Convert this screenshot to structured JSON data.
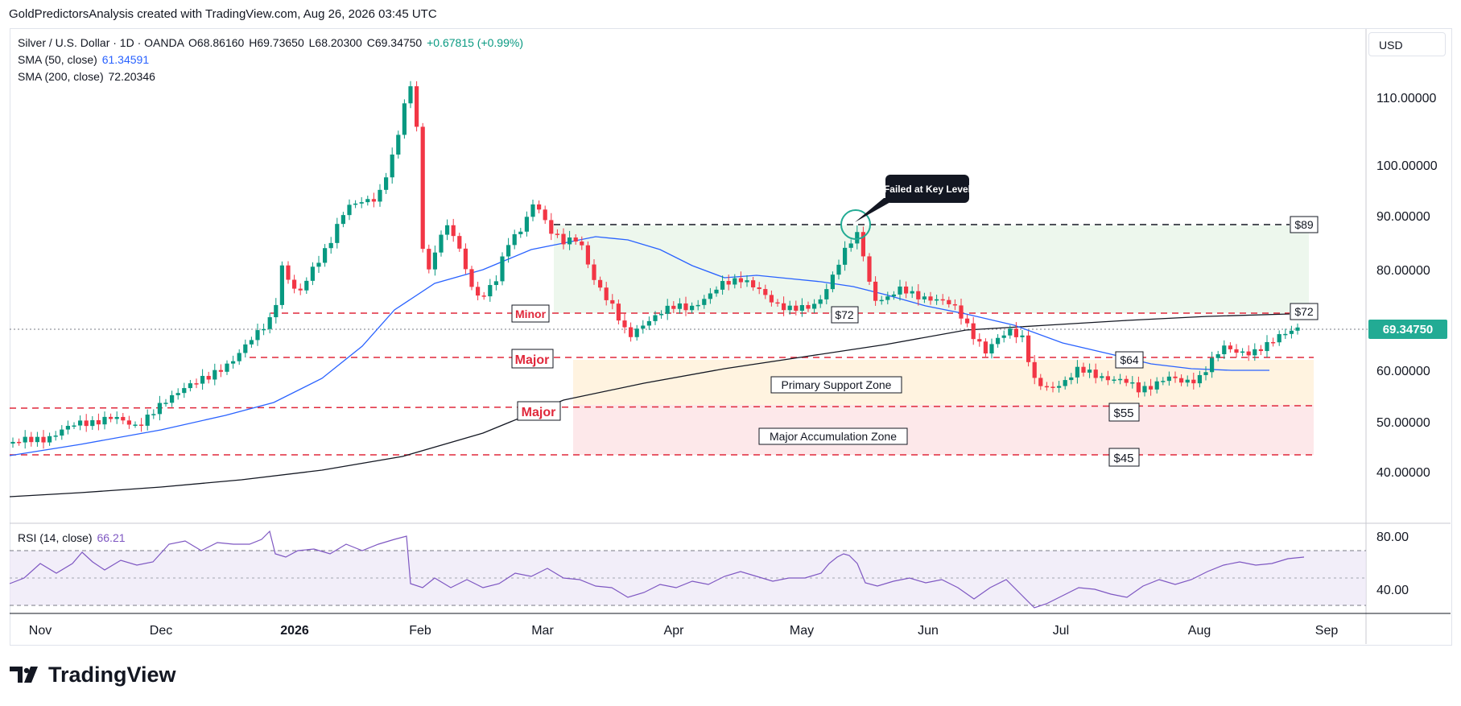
{
  "header": {
    "attribution": "GoldPredictorsAnalysis created with TradingView.com, Aug 26, 2026 03:45 UTC"
  },
  "legend": {
    "symbol": "Silver / U.S. Dollar · 1D · OANDA",
    "open": "O68.86160",
    "high": "H69.73650",
    "low": "L68.20300",
    "close": "C69.34750",
    "change": "+0.67815 (+0.99%)",
    "sma50_label": "SMA (50, close)",
    "sma50_value": "61.34591",
    "sma200_label": "SMA (200, close)",
    "sma200_value": "72.20346",
    "rsi_label": "RSI (14, close)",
    "rsi_value": "66.21"
  },
  "currency": "USD",
  "logo_text": "TradingView",
  "colors": {
    "up": "#089981",
    "down": "#f23645",
    "sma50": "#2962ff",
    "sma200": "#131722",
    "rsi": "#7e57c2",
    "price_label": "#22ab94",
    "annot_red": "#e0283b"
  },
  "chart_data": {
    "type": "candlestick",
    "price_axis": {
      "ticks": [
        "110.00000",
        "100.00000",
        "90.00000",
        "80.00000",
        "60.00000",
        "50.00000",
        "40.00000"
      ],
      "last_price": "69.34750"
    },
    "rsi_axis": {
      "ticks": [
        "80.00",
        "40.00"
      ]
    },
    "time_axis": {
      "labels": [
        "Nov",
        "Dec",
        "2026",
        "Feb",
        "Mar",
        "Apr",
        "May",
        "Jun",
        "Jul",
        "Aug",
        "Sep"
      ]
    },
    "price_levels": [
      {
        "price": 89,
        "label": "$89",
        "style": "black-dashed"
      },
      {
        "price": 72,
        "label": "$72",
        "style": "red-dashed"
      },
      {
        "price": 64,
        "label": "$64",
        "style": "red-dashed"
      },
      {
        "price": 55,
        "label": "$55",
        "style": "red-dashed"
      },
      {
        "price": 45,
        "label": "$45",
        "style": "red-dashed"
      }
    ],
    "annotations": {
      "minor": "Minor",
      "major_1": "Major",
      "major_2": "Major",
      "pivot_72": "$72",
      "failed": "Failed at Key Level",
      "primary_zone": "Primary Support Zone",
      "accumulation_zone": "Major Accumulation Zone"
    },
    "zones": [
      {
        "name": "Primary Support Zone",
        "from": 55,
        "to": 64,
        "color": "#fff3e0"
      },
      {
        "name": "Major Accumulation Zone",
        "from": 45,
        "to": 55,
        "color": "#fde8ea"
      },
      {
        "name": "Range",
        "from": 72,
        "to": 89,
        "color": "#e8f5e9"
      }
    ]
  }
}
